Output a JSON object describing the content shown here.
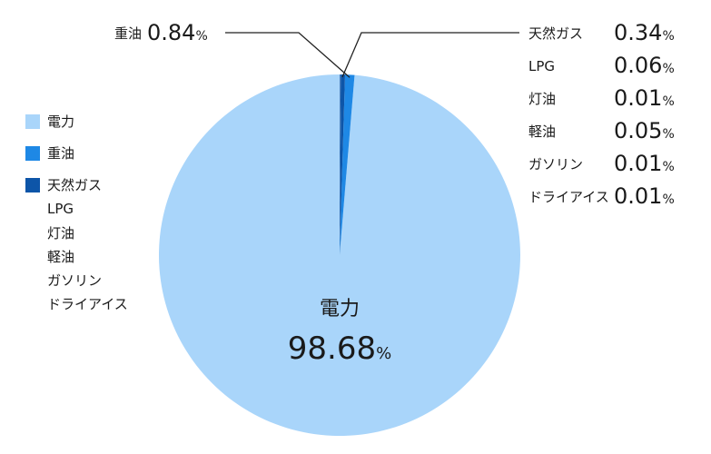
{
  "chart_data": {
    "type": "pie",
    "slices": [
      {
        "label": "電力",
        "value": 98.68,
        "color": "#a9d5fa"
      },
      {
        "label": "重油",
        "value": 0.84,
        "color": "#1e88e5"
      },
      {
        "label": "天然ガス",
        "value": 0.34,
        "color": "#0d55a8"
      },
      {
        "label": "LPG",
        "value": 0.06,
        "color": "#0d55a8"
      },
      {
        "label": "灯油",
        "value": 0.01,
        "color": "#0d55a8"
      },
      {
        "label": "軽油",
        "value": 0.05,
        "color": "#0d55a8"
      },
      {
        "label": "ガソリン",
        "value": 0.01,
        "color": "#0d55a8"
      },
      {
        "label": "ドライアイス",
        "value": 0.01,
        "color": "#0d55a8"
      }
    ],
    "main_label": {
      "name": "電力",
      "value": "98.68",
      "unit": "%"
    },
    "callout_left": {
      "name": "重油",
      "value": "0.84",
      "unit": "%"
    },
    "callout_right": [
      {
        "name": "天然ガス",
        "value": "0.34",
        "unit": "%"
      },
      {
        "name": "LPG",
        "value": "0.06",
        "unit": "%"
      },
      {
        "name": "灯油",
        "value": "0.01",
        "unit": "%"
      },
      {
        "name": "軽油",
        "value": "0.05",
        "unit": "%"
      },
      {
        "name": "ガソリン",
        "value": "0.01",
        "unit": "%"
      },
      {
        "name": "ドライアイス",
        "value": "0.01",
        "unit": "%"
      }
    ],
    "legend": {
      "placement": "left",
      "entries": [
        {
          "label": "電力",
          "color": "#a9d5fa"
        },
        {
          "label": "重油",
          "color": "#1e88e5"
        },
        {
          "label": "天然ガス",
          "color": "#0d55a8"
        }
      ],
      "sub_items": [
        "LPG",
        "灯油",
        "軽油",
        "ガソリン",
        "ドライアイス"
      ]
    }
  }
}
